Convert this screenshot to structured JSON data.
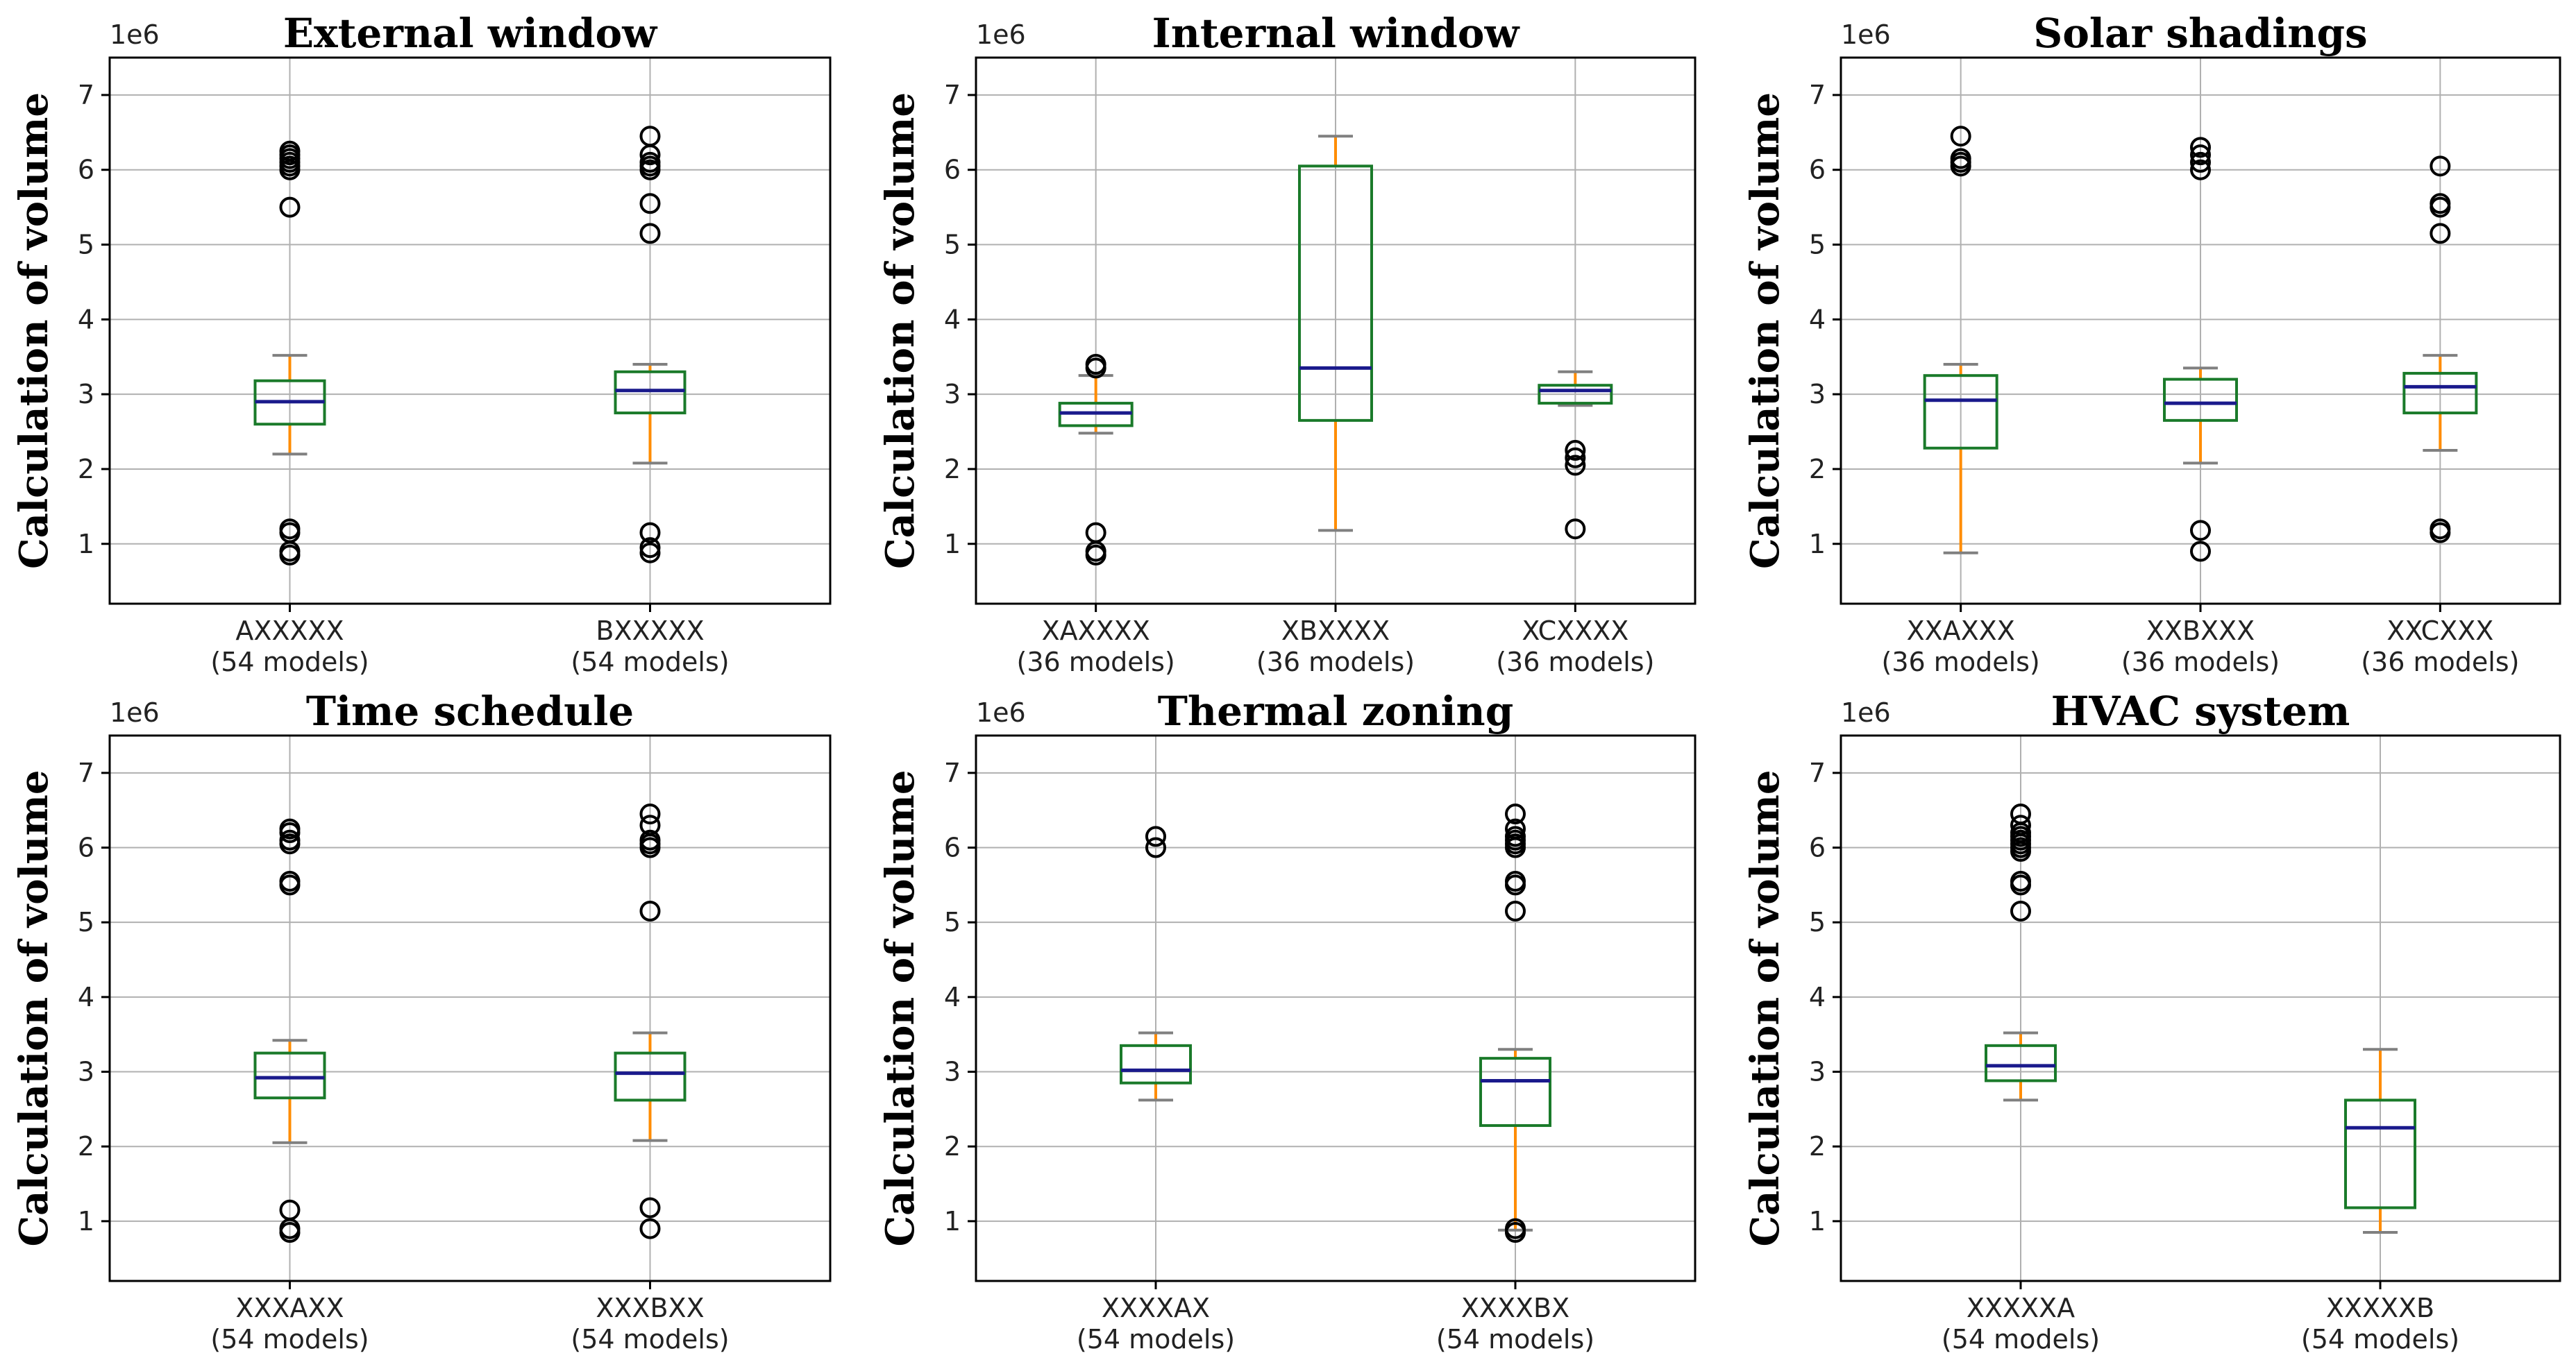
{
  "chart_data": [
    {
      "type": "box",
      "title": "External window",
      "ylabel": "Calculation of volume",
      "y_scale_label": "1e6",
      "ylim": [
        0.2,
        7.5
      ],
      "yticks": [
        1,
        2,
        3,
        4,
        5,
        6,
        7
      ],
      "grid": true,
      "categories": [
        {
          "label": "AXXXXX",
          "sublabel": "(54 models)",
          "whislo": 2.2,
          "q1": 2.6,
          "med": 2.9,
          "q3": 3.18,
          "whishi": 3.52,
          "fliers": [
            0.85,
            0.9,
            1.15,
            1.2,
            5.5,
            6.0,
            6.05,
            6.1,
            6.15,
            6.2,
            6.25
          ]
        },
        {
          "label": "BXXXXX",
          "sublabel": "(54 models)",
          "whislo": 2.08,
          "q1": 2.75,
          "med": 3.05,
          "q3": 3.3,
          "whishi": 3.4,
          "fliers": [
            0.88,
            0.95,
            1.15,
            5.15,
            5.55,
            6.0,
            6.05,
            6.1,
            6.2,
            6.45
          ]
        }
      ]
    },
    {
      "type": "box",
      "title": "Internal window",
      "ylabel": "Calculation of volume",
      "y_scale_label": "1e6",
      "ylim": [
        0.2,
        7.5
      ],
      "yticks": [
        1,
        2,
        3,
        4,
        5,
        6,
        7
      ],
      "grid": true,
      "categories": [
        {
          "label": "XAXXXX",
          "sublabel": "(36 models)",
          "whislo": 2.48,
          "q1": 2.58,
          "med": 2.75,
          "q3": 2.88,
          "whishi": 3.25,
          "fliers": [
            0.85,
            0.9,
            1.15,
            3.35,
            3.4
          ]
        },
        {
          "label": "XBXXXX",
          "sublabel": "(36 models)",
          "whislo": 1.18,
          "q1": 2.65,
          "med": 3.35,
          "q3": 6.05,
          "whishi": 6.45,
          "fliers": []
        },
        {
          "label": "XCXXXX",
          "sublabel": "(36 models)",
          "whislo": 2.85,
          "q1": 2.88,
          "med": 3.05,
          "q3": 3.12,
          "whishi": 3.3,
          "fliers": [
            1.2,
            2.05,
            2.15,
            2.25
          ]
        }
      ]
    },
    {
      "type": "box",
      "title": "Solar shadings",
      "ylabel": "Calculation of volume",
      "y_scale_label": "1e6",
      "ylim": [
        0.2,
        7.5
      ],
      "yticks": [
        1,
        2,
        3,
        4,
        5,
        6,
        7
      ],
      "grid": true,
      "categories": [
        {
          "label": "XXAXXX",
          "sublabel": "(36 models)",
          "whislo": 0.88,
          "q1": 2.28,
          "med": 2.92,
          "q3": 3.25,
          "whishi": 3.4,
          "fliers": [
            6.05,
            6.1,
            6.15,
            6.45
          ]
        },
        {
          "label": "XXBXXX",
          "sublabel": "(36 models)",
          "whislo": 2.08,
          "q1": 2.65,
          "med": 2.88,
          "q3": 3.2,
          "whishi": 3.35,
          "fliers": [
            0.9,
            1.18,
            6.0,
            6.1,
            6.2,
            6.3
          ]
        },
        {
          "label": "XXCXXX",
          "sublabel": "(36 models)",
          "whislo": 2.25,
          "q1": 2.75,
          "med": 3.1,
          "q3": 3.28,
          "whishi": 3.52,
          "fliers": [
            1.15,
            1.2,
            5.15,
            5.5,
            5.55,
            6.05
          ]
        }
      ]
    },
    {
      "type": "box",
      "title": "Time schedule",
      "ylabel": "Calculation of volume",
      "y_scale_label": "1e6",
      "ylim": [
        0.2,
        7.5
      ],
      "yticks": [
        1,
        2,
        3,
        4,
        5,
        6,
        7
      ],
      "grid": true,
      "categories": [
        {
          "label": "XXXAXX",
          "sublabel": "(54 models)",
          "whislo": 2.05,
          "q1": 2.65,
          "med": 2.92,
          "q3": 3.25,
          "whishi": 3.42,
          "fliers": [
            0.85,
            0.9,
            1.15,
            5.5,
            5.55,
            6.05,
            6.1,
            6.2,
            6.25
          ]
        },
        {
          "label": "XXXBXX",
          "sublabel": "(54 models)",
          "whislo": 2.08,
          "q1": 2.62,
          "med": 2.98,
          "q3": 3.25,
          "whishi": 3.52,
          "fliers": [
            0.9,
            1.18,
            5.15,
            6.0,
            6.05,
            6.1,
            6.3,
            6.45
          ]
        }
      ]
    },
    {
      "type": "box",
      "title": "Thermal zoning",
      "ylabel": "Calculation of volume",
      "y_scale_label": "1e6",
      "ylim": [
        0.2,
        7.5
      ],
      "yticks": [
        1,
        2,
        3,
        4,
        5,
        6,
        7
      ],
      "grid": true,
      "categories": [
        {
          "label": "XXXXAX",
          "sublabel": "(54 models)",
          "whislo": 2.62,
          "q1": 2.85,
          "med": 3.02,
          "q3": 3.35,
          "whishi": 3.52,
          "fliers": [
            6.0,
            6.15
          ]
        },
        {
          "label": "XXXXBX",
          "sublabel": "(54 models)",
          "whislo": 0.88,
          "q1": 2.28,
          "med": 2.88,
          "q3": 3.18,
          "whishi": 3.3,
          "fliers": [
            0.85,
            0.9,
            5.15,
            5.5,
            5.55,
            6.0,
            6.05,
            6.1,
            6.15,
            6.25,
            6.45
          ]
        }
      ]
    },
    {
      "type": "box",
      "title": "HVAC system",
      "ylabel": "Calculation of volume",
      "y_scale_label": "1e6",
      "ylim": [
        0.2,
        7.5
      ],
      "yticks": [
        1,
        2,
        3,
        4,
        5,
        6,
        7
      ],
      "grid": true,
      "categories": [
        {
          "label": "XXXXXA",
          "sublabel": "(54 models)",
          "whislo": 2.62,
          "q1": 2.88,
          "med": 3.08,
          "q3": 3.35,
          "whishi": 3.52,
          "fliers": [
            5.15,
            5.5,
            5.55,
            5.95,
            6.0,
            6.05,
            6.1,
            6.15,
            6.2,
            6.3,
            6.45
          ]
        },
        {
          "label": "XXXXXB",
          "sublabel": "(54 models)",
          "whislo": 0.85,
          "q1": 1.18,
          "med": 2.25,
          "q3": 2.62,
          "whishi": 3.3,
          "fliers": []
        }
      ]
    }
  ],
  "colors": {
    "box": "#1a7a2a",
    "median": "#1a1a8c",
    "whisker": "#ff8c00",
    "cap": "#808080",
    "grid": "#b0b0b0",
    "flier": "#000000",
    "axis": "#000000"
  }
}
